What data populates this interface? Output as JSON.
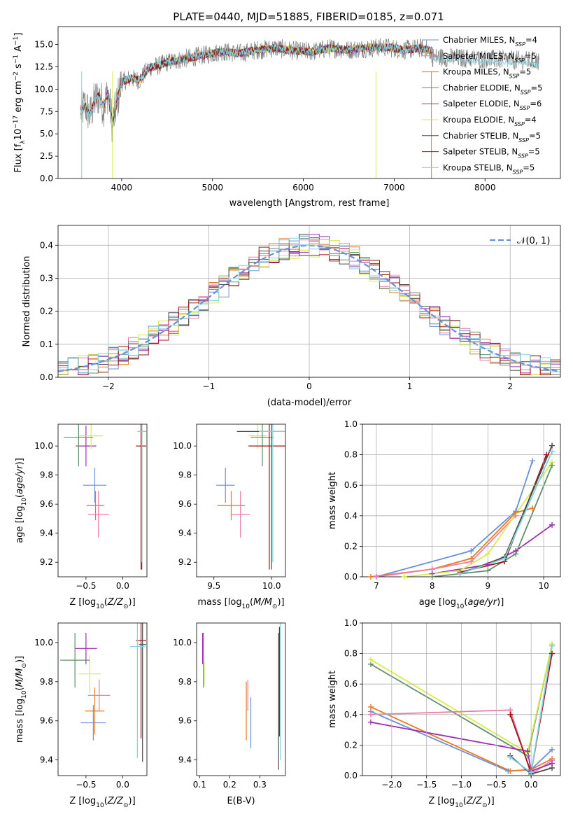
{
  "figure": {
    "title": "PLATE=0440, MJD=51885, FIBERID=0185, z=0.071"
  },
  "colors": {
    "Chabrier MILES": "#6a8fdb",
    "Salpeter MILES": "#ee7aa8",
    "Kroupa MILES": "#e8791f",
    "Chabrier ELODIE": "#5f8f6a",
    "Salpeter ELODIE": "#9b2fb0",
    "Kroupa ELODIE": "#d7ec4a",
    "Chabrier STELIB": "#4a4a4a",
    "Salpeter STELIB": "#a01515",
    "Kroupa STELIB": "#7fd3e0",
    "data": "#808080"
  },
  "chart_data": [
    {
      "panel": "spectrum",
      "type": "line",
      "xlabel": "wavelength [Angstrom, rest frame]",
      "ylabel": "Flux [fλ10⁻¹⁷ erg cm⁻² s⁻¹ A⁻¹]",
      "xlim": [
        3300,
        8830
      ],
      "ylim": [
        0,
        17
      ],
      "xticks": [
        "4000",
        "5000",
        "6000",
        "7000",
        "8000"
      ],
      "yticks": [
        "0.0",
        "2.5",
        "5.0",
        "7.5",
        "10.0",
        "12.5",
        "15.0"
      ],
      "legend_position": "upper right",
      "x": [
        3550,
        3600,
        3650,
        3700,
        3750,
        3800,
        3850,
        3900,
        3950,
        4000,
        4100,
        4200,
        4300,
        4400,
        4500,
        4700,
        4900,
        5100,
        5300,
        5500,
        5700,
        5900,
        6100,
        6300,
        6500,
        6700,
        6900,
        7100,
        7300,
        7400
      ],
      "data_flux": [
        7.5,
        8.2,
        7.0,
        8.6,
        9.3,
        8.1,
        9.6,
        6.0,
        8.6,
        10.8,
        11.2,
        11.0,
        12.4,
        12.6,
        13.0,
        13.4,
        13.8,
        14.2,
        14.0,
        14.4,
        14.6,
        14.3,
        14.2,
        14.6,
        14.4,
        14.6,
        14.7,
        14.4,
        14.6,
        14.3
      ],
      "series": [
        {
          "name": "Chabrier MILES, N_SSP=4",
          "key": "Chabrier MILES"
        },
        {
          "name": "Salpeter MILES, N_SSP=5",
          "key": "Salpeter MILES"
        },
        {
          "name": "Kroupa MILES, N_SSP=5",
          "key": "Kroupa MILES"
        },
        {
          "name": "Chabrier ELODIE, N_SSP=5",
          "key": "Chabrier ELODIE"
        },
        {
          "name": "Salpeter ELODIE, N_SSP=6",
          "key": "Salpeter ELODIE"
        },
        {
          "name": "Kroupa ELODIE, N_SSP=4",
          "key": "Kroupa ELODIE"
        },
        {
          "name": "Chabrier STELIB, N_SSP=5",
          "key": "Chabrier STELIB"
        },
        {
          "name": "Salpeter STELIB, N_SSP=5",
          "key": "Salpeter STELIB"
        },
        {
          "name": "Kroupa STELIB, N_SSP=5",
          "key": "Kroupa STELIB"
        }
      ]
    },
    {
      "panel": "residuals",
      "type": "line",
      "xlabel": "(data-model)/error",
      "ylabel": "Normed distribution",
      "xlim": [
        -2.5,
        2.5
      ],
      "ylim": [
        0,
        0.46
      ],
      "xticks": [
        "−2",
        "−1",
        "0",
        "1",
        "2"
      ],
      "yticks": [
        "0.0",
        "0.1",
        "0.2",
        "0.3",
        "0.4"
      ],
      "legend": "𝒩(0, 1)",
      "legend_position": "upper right",
      "grid": true,
      "bin_width": 0.1,
      "reference_curve": "Gaussian N(0,1)"
    },
    {
      "panel": "age-vs-Z",
      "type": "scatter",
      "xlabel": "Z [log10(Z/Z⊙)]",
      "ylabel": "age [log10(age/yr)]",
      "xlim": [
        -0.88,
        0.33
      ],
      "ylim": [
        9.1,
        10.15
      ],
      "xticks": [
        "−0.5",
        "0.0"
      ],
      "yticks": [
        "9.2",
        "9.4",
        "9.6",
        "9.8",
        "10.0"
      ],
      "points": [
        {
          "key": "Chabrier MILES",
          "x": -0.38,
          "xerr": 0.16,
          "y": 9.73,
          "yerr": 0.12
        },
        {
          "key": "Kroupa MILES",
          "x": -0.37,
          "xerr": 0.12,
          "y": 9.59,
          "yerr": 0.1
        },
        {
          "key": "Salpeter MILES",
          "x": -0.33,
          "xerr": 0.14,
          "y": 9.53,
          "yerr": 0.16
        },
        {
          "key": "Salpeter ELODIE",
          "x": -0.5,
          "xerr": 0.14,
          "y": 10.0,
          "yerr": 0.14
        },
        {
          "key": "Kroupa ELODIE",
          "x": -0.43,
          "xerr": 0.16,
          "y": 10.07,
          "yerr": 0.09
        },
        {
          "key": "Chabrier ELODIE",
          "x": -0.6,
          "xerr": 0.2,
          "y": 10.06,
          "yerr": 0.2
        },
        {
          "key": "Salpeter STELIB",
          "x": 0.25,
          "xerr": 0.07,
          "y": 10.0,
          "yerr": 0.85
        },
        {
          "key": "Chabrier STELIB",
          "x": 0.26,
          "xerr": 0.05,
          "y": 10.1,
          "yerr": 0.95
        },
        {
          "key": "Kroupa STELIB",
          "x": 0.26,
          "xerr": 0.06,
          "y": 10.1,
          "yerr": 0.9
        }
      ]
    },
    {
      "panel": "age-vs-mass",
      "type": "scatter",
      "xlabel": "mass [log10(M/M⊙)]",
      "ylabel": "",
      "xlim": [
        9.35,
        10.12
      ],
      "ylim": [
        9.1,
        10.15
      ],
      "xticks": [
        "9.5",
        "10.0"
      ],
      "yticks": [
        "9.2",
        "9.4",
        "9.6",
        "9.8",
        "10.0"
      ],
      "points": [
        {
          "key": "Chabrier MILES",
          "x": 9.6,
          "xerr": 0.08,
          "y": 9.73,
          "yerr": 0.12
        },
        {
          "key": "Kroupa MILES",
          "x": 9.65,
          "xerr": 0.12,
          "y": 9.59,
          "yerr": 0.1
        },
        {
          "key": "Salpeter MILES",
          "x": 9.73,
          "xerr": 0.08,
          "y": 9.53,
          "yerr": 0.16
        },
        {
          "key": "Kroupa ELODIE",
          "x": 9.88,
          "xerr": 0.08,
          "y": 10.07,
          "yerr": 0.09
        },
        {
          "key": "Chabrier ELODIE",
          "x": 9.92,
          "xerr": 0.1,
          "y": 10.06,
          "yerr": 0.2
        },
        {
          "key": "Salpeter STELIB",
          "x": 9.98,
          "xerr": 0.18,
          "y": 10.0,
          "yerr": 0.85
        },
        {
          "key": "Chabrier STELIB",
          "x": 10.0,
          "xerr": 0.3,
          "y": 10.1,
          "yerr": 0.95
        },
        {
          "key": "Kroupa STELIB",
          "x": 10.01,
          "xerr": 0.12,
          "y": 10.1,
          "yerr": 0.9
        }
      ]
    },
    {
      "panel": "massweight-vs-age",
      "type": "line",
      "xlabel": "age [log10(age/yr)]",
      "ylabel": "mass weight",
      "xlim": [
        6.75,
        10.3
      ],
      "ylim": [
        0,
        1.0
      ],
      "xticks": [
        "7",
        "8",
        "9",
        "10"
      ],
      "yticks": [
        "0.0",
        "0.2",
        "0.4",
        "0.6",
        "0.8",
        "1.0"
      ],
      "grid": true,
      "series": [
        {
          "key": "Chabrier MILES",
          "x": [
            7.0,
            8.7,
            9.5,
            9.8
          ],
          "y": [
            0.0,
            0.17,
            0.43,
            0.76
          ]
        },
        {
          "key": "Kroupa MILES",
          "x": [
            6.9,
            8.0,
            8.7,
            9.5,
            9.8
          ],
          "y": [
            0.0,
            0.05,
            0.12,
            0.42,
            0.45
          ]
        },
        {
          "key": "Salpeter MILES",
          "x": [
            7.0,
            8.0,
            8.7,
            9.5
          ],
          "y": [
            0.0,
            0.05,
            0.1,
            0.4
          ]
        },
        {
          "key": "Salpeter ELODIE",
          "x": [
            8.0,
            9.0,
            9.5,
            10.15
          ],
          "y": [
            0.02,
            0.08,
            0.17,
            0.34
          ]
        },
        {
          "key": "Kroupa ELODIE",
          "x": [
            7.5,
            8.5,
            9.0,
            10.15
          ],
          "y": [
            0.0,
            0.04,
            0.15,
            0.75
          ]
        },
        {
          "key": "Chabrier ELODIE",
          "x": [
            8.0,
            9.0,
            9.5,
            10.15
          ],
          "y": [
            0.0,
            0.04,
            0.15,
            0.73
          ]
        },
        {
          "key": "Salpeter STELIB",
          "x": [
            8.5,
            9.3,
            10.05
          ],
          "y": [
            0.03,
            0.1,
            0.8
          ]
        },
        {
          "key": "Chabrier STELIB",
          "x": [
            8.5,
            9.3,
            10.15
          ],
          "y": [
            0.02,
            0.13,
            0.86
          ]
        },
        {
          "key": "Kroupa STELIB",
          "x": [
            8.5,
            9.3,
            10.15
          ],
          "y": [
            0.02,
            0.12,
            0.82
          ]
        }
      ]
    },
    {
      "panel": "mass-vs-Z",
      "type": "scatter",
      "xlabel": "Z [log10(Z/Z⊙)]",
      "ylabel": "mass [log10(M/M⊙)]",
      "xlim": [
        -0.88,
        0.33
      ],
      "ylim": [
        9.32,
        10.1
      ],
      "xticks": [
        "−0.5",
        "0.0"
      ],
      "yticks": [
        "9.4",
        "9.6",
        "9.8",
        "10.0"
      ],
      "points": [
        {
          "key": "Chabrier MILES",
          "x": -0.4,
          "xerr": 0.17,
          "y": 9.59,
          "yerr": 0.09
        },
        {
          "key": "Kroupa MILES",
          "x": -0.38,
          "xerr": 0.13,
          "y": 9.65,
          "yerr": 0.12
        },
        {
          "key": "Salpeter MILES",
          "x": -0.32,
          "xerr": 0.15,
          "y": 9.73,
          "yerr": 0.08
        },
        {
          "key": "Salpeter ELODIE",
          "x": -0.5,
          "xerr": 0.15,
          "y": 9.97,
          "yerr": 0.08
        },
        {
          "key": "Kroupa ELODIE",
          "x": -0.45,
          "xerr": 0.15,
          "y": 9.84,
          "yerr": 0.1
        },
        {
          "key": "Chabrier ELODIE",
          "x": -0.65,
          "xerr": 0.2,
          "y": 9.91,
          "yerr": 0.14
        },
        {
          "key": "Salpeter STELIB",
          "x": 0.25,
          "xerr": 0.07,
          "y": 10.01,
          "yerr": 0.5
        },
        {
          "key": "Chabrier STELIB",
          "x": 0.27,
          "xerr": 0.05,
          "y": 9.99,
          "yerr": 0.6
        },
        {
          "key": "Kroupa STELIB",
          "x": 0.2,
          "xerr": 0.1,
          "y": 9.98,
          "yerr": 0.57
        }
      ]
    },
    {
      "panel": "mass-vs-EBV",
      "type": "scatter",
      "xlabel": "E(B-V)",
      "ylabel": "",
      "xlim": [
        0.09,
        0.385
      ],
      "ylim": [
        9.32,
        10.1
      ],
      "xticks": [
        "0.1",
        "0.2",
        "0.3"
      ],
      "yticks": [
        "9.4",
        "9.6",
        "9.8",
        "10.0"
      ],
      "points": [
        {
          "key": "Chabrier MILES",
          "x": 0.27,
          "y": 9.59,
          "yerr": 0.13
        },
        {
          "key": "Kroupa MILES",
          "x": 0.255,
          "y": 9.65,
          "yerr": 0.15
        },
        {
          "key": "Salpeter MILES",
          "x": 0.26,
          "y": 9.73,
          "yerr": 0.08
        },
        {
          "key": "Salpeter ELODIE",
          "x": 0.11,
          "y": 9.97,
          "yerr": 0.08
        },
        {
          "key": "Kroupa ELODIE",
          "x": 0.115,
          "y": 9.84,
          "yerr": 0.06
        },
        {
          "key": "Chabrier ELODIE",
          "x": 0.113,
          "y": 9.91,
          "yerr": 0.14
        },
        {
          "key": "Salpeter STELIB",
          "x": 0.365,
          "y": 9.8,
          "yerr": 0.28
        },
        {
          "key": "Chabrier STELIB",
          "x": 0.362,
          "y": 9.7,
          "yerr": 0.35
        },
        {
          "key": "Kroupa STELIB",
          "x": 0.368,
          "y": 9.75,
          "yerr": 0.35
        }
      ]
    },
    {
      "panel": "massweight-vs-Z",
      "type": "line",
      "xlabel": "Z [log10(Z/Z⊙)]",
      "ylabel": "mass weight",
      "xlim": [
        -2.42,
        0.42
      ],
      "ylim": [
        0,
        1.0
      ],
      "xticks": [
        "−2.0",
        "−1.5",
        "−1.0",
        "−0.5",
        "0.0"
      ],
      "yticks": [
        "0.0",
        "0.2",
        "0.4",
        "0.6",
        "0.8",
        "1.0"
      ],
      "grid": true,
      "series": [
        {
          "key": "Chabrier ELODIE",
          "x": [
            -2.3,
            -0.05,
            0.3
          ],
          "y": [
            0.73,
            0.13,
            0.86
          ]
        },
        {
          "key": "Kroupa ELODIE",
          "x": [
            -2.3,
            -0.05,
            0.3
          ],
          "y": [
            0.76,
            0.15,
            0.86
          ]
        },
        {
          "key": "Chabrier MILES",
          "x": [
            -2.3,
            -0.33,
            0.0,
            0.3
          ],
          "y": [
            0.42,
            0.03,
            0.04,
            0.17
          ]
        },
        {
          "key": "Kroupa MILES",
          "x": [
            -2.3,
            -0.3,
            0.0,
            0.3
          ],
          "y": [
            0.45,
            0.03,
            0.04,
            0.11
          ]
        },
        {
          "key": "Salpeter MILES",
          "x": [
            -2.3,
            -0.3,
            0.0,
            0.3
          ],
          "y": [
            0.4,
            0.43,
            0.01,
            0.1
          ]
        },
        {
          "key": "Salpeter ELODIE",
          "x": [
            -2.3,
            -0.05,
            0.0,
            0.3
          ],
          "y": [
            0.35,
            0.16,
            0.03,
            0.08
          ]
        },
        {
          "key": "Salpeter STELIB",
          "x": [
            -0.3,
            0.0,
            0.3
          ],
          "y": [
            0.4,
            0.02,
            0.8
          ]
        },
        {
          "key": "Chabrier STELIB",
          "x": [
            -0.3,
            0.0,
            0.3
          ],
          "y": [
            0.13,
            0.01,
            0.05
          ]
        },
        {
          "key": "Kroupa STELIB",
          "x": [
            -0.3,
            0.0,
            0.3
          ],
          "y": [
            0.12,
            0.02,
            0.85
          ]
        }
      ]
    }
  ]
}
